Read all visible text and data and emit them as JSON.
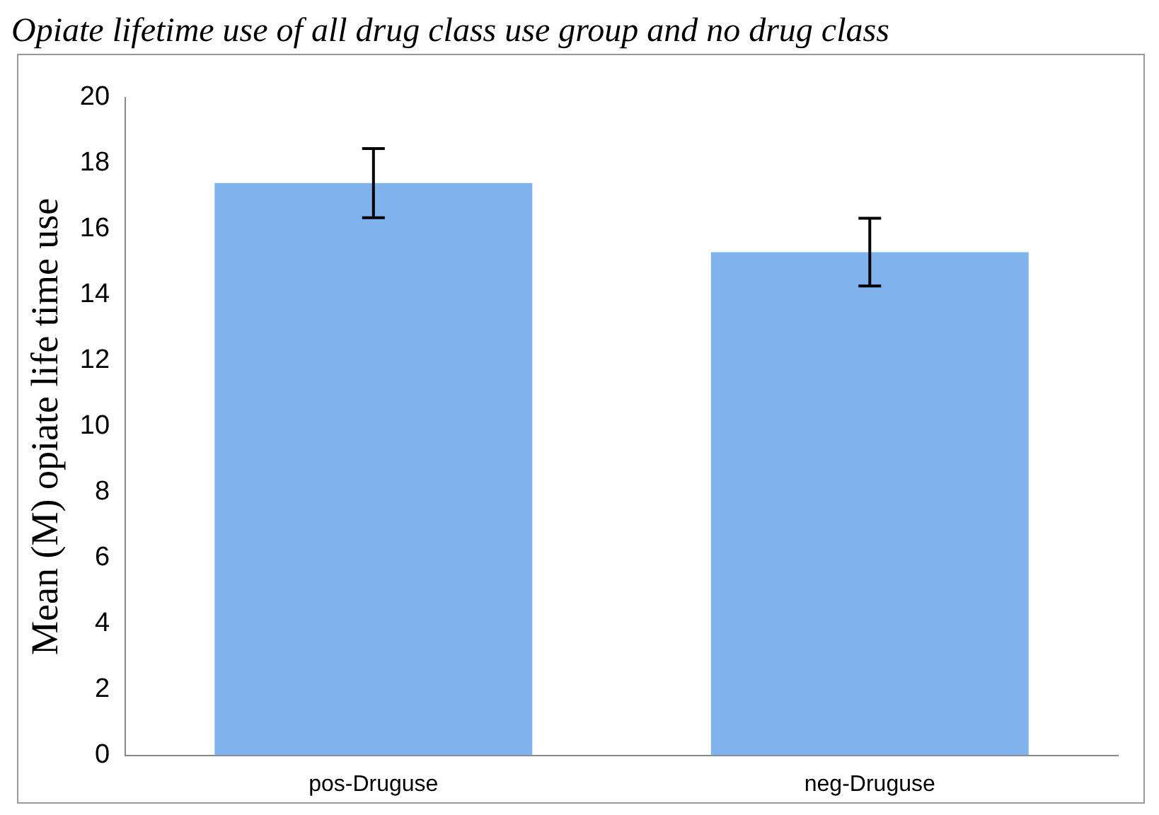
{
  "chart_data": {
    "type": "bar",
    "title": "Opiate lifetime use of all drug class use group and no drug class",
    "categories": [
      "pos-Druguse",
      "neg-Druguse"
    ],
    "values": [
      17.4,
      15.3
    ],
    "errors": [
      1.05,
      1.03
    ],
    "color": "#80b2ee",
    "ylabel": "Mean (M) opiate life time use",
    "ylim": [
      0,
      20
    ],
    "yticks": [
      0,
      2,
      4,
      6,
      8,
      10,
      12,
      14,
      16,
      18,
      20
    ],
    "grid": false,
    "legend": false
  }
}
